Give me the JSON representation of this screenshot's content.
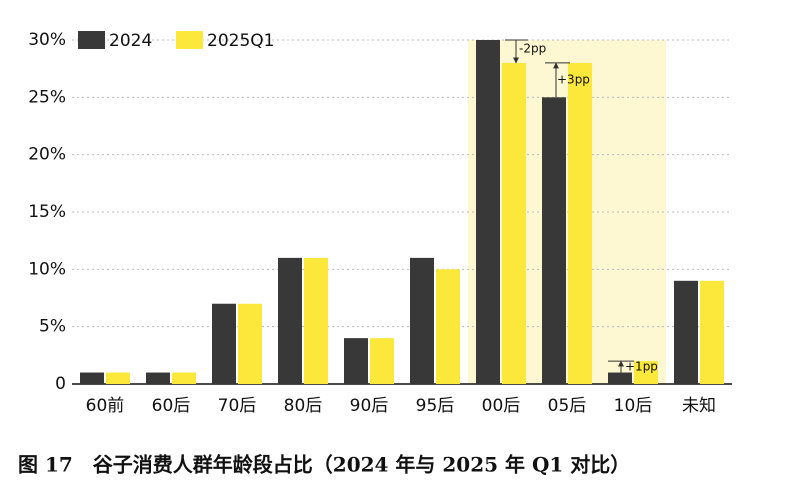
{
  "chart_data": {
    "type": "bar",
    "title": "图 17　谷子消费人群年龄段占比（2024 年与 2025 年 Q1 对比）",
    "categories": [
      "60前",
      "60后",
      "70后",
      "80后",
      "90后",
      "95后",
      "00后",
      "05后",
      "10后",
      "未知"
    ],
    "series": [
      {
        "name": "2024",
        "color": "#383838",
        "values": [
          1,
          1,
          7,
          11,
          4,
          11,
          30,
          25,
          1,
          9
        ]
      },
      {
        "name": "2025Q1",
        "color": "#fbe83a",
        "values": [
          1,
          1,
          7,
          11,
          4,
          10,
          28,
          28,
          2,
          9
        ]
      }
    ],
    "ylim": [
      0,
      30
    ],
    "yticks": [
      0,
      {
        "value": 5,
        "label": "5%"
      },
      {
        "value": 10,
        "label": "10%"
      },
      {
        "value": 15,
        "label": "15%"
      },
      {
        "value": 20,
        "label": "20%"
      },
      {
        "value": 25,
        "label": "25%"
      },
      {
        "value": 30,
        "label": "30%"
      }
    ],
    "annotations": [
      "-2pp",
      "+3pp",
      "+1pp"
    ],
    "grid": true,
    "legend": "top-left"
  }
}
